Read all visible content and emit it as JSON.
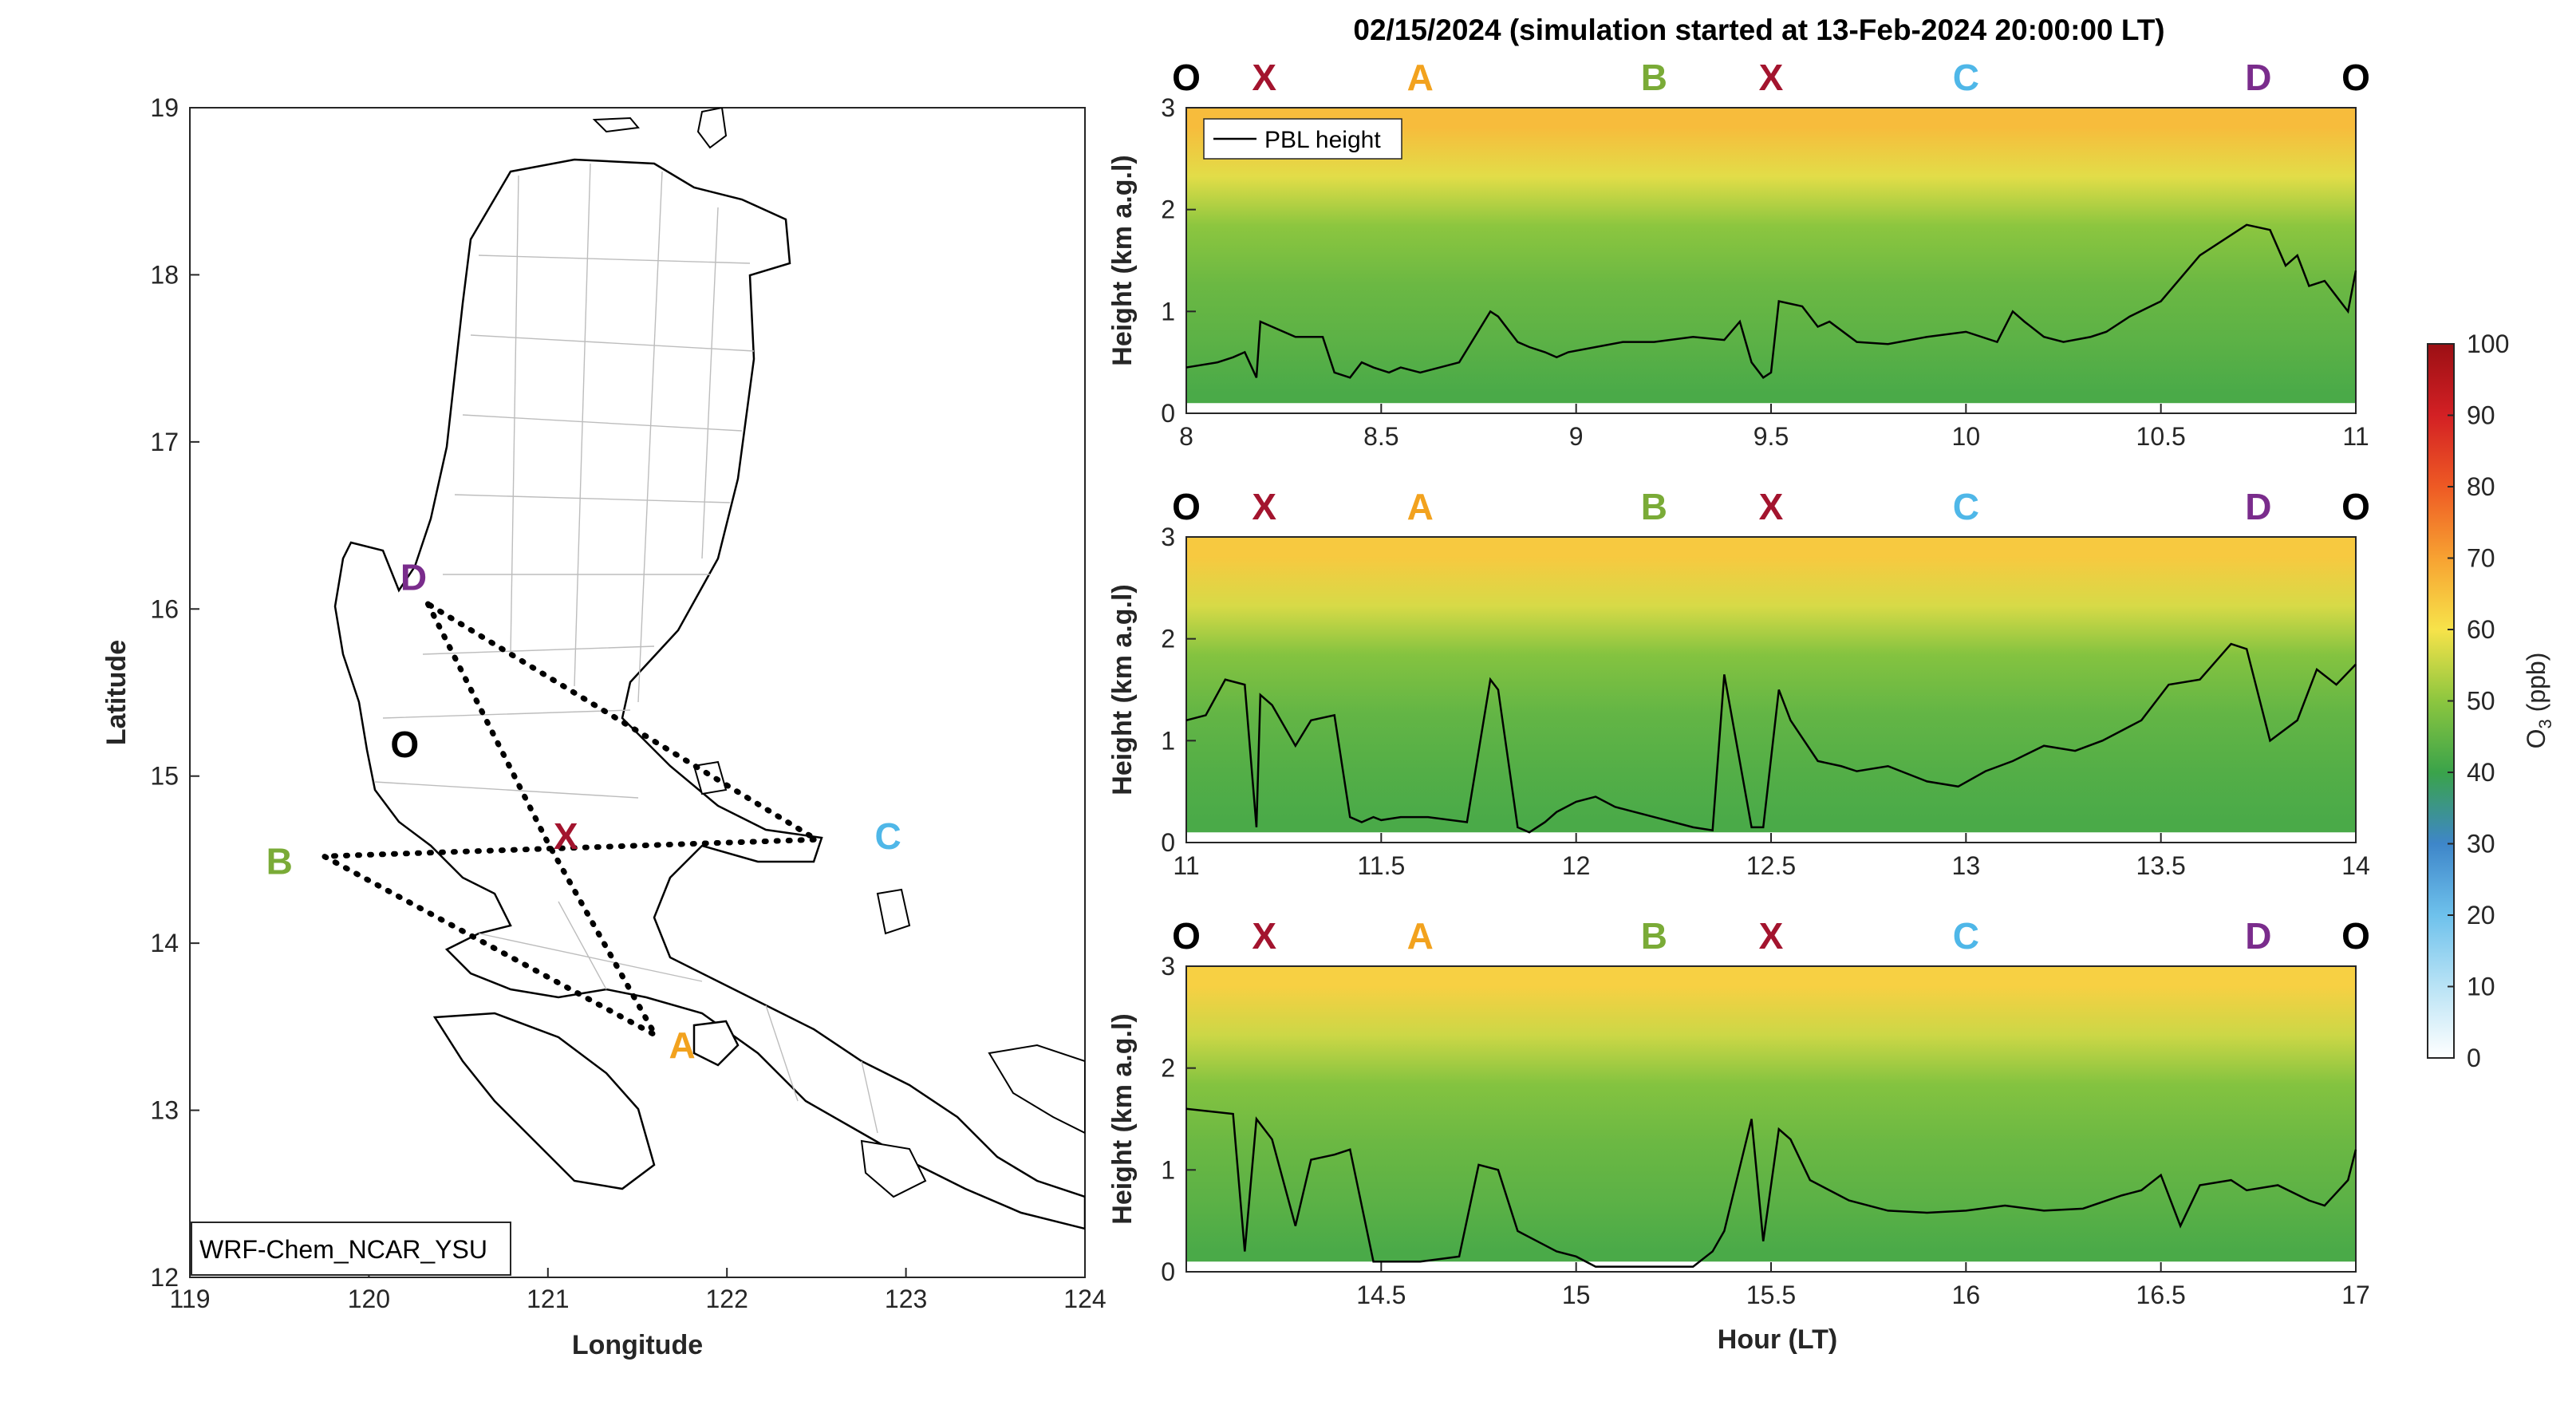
{
  "figure": {
    "title": "02/15/2024 (simulation started at 13-Feb-2024 20:00:00 LT)",
    "xlabel": "Hour (LT)"
  },
  "colors": {
    "O": "#000000",
    "X": "#a3142e",
    "A": "#f2a21e",
    "B": "#7aab37",
    "C": "#4fb7e8",
    "D": "#7a2c8c"
  },
  "chart_data": [
    {
      "type": "map",
      "xlabel": "Longitude",
      "ylabel": "Latitude",
      "xlim": [
        119,
        124
      ],
      "ylim": [
        12,
        19
      ],
      "xticks": [
        119,
        120,
        121,
        122,
        123,
        124
      ],
      "yticks": [
        12,
        13,
        14,
        15,
        16,
        17,
        18,
        19
      ],
      "model_label": "WRF-Chem_NCAR_YSU",
      "points": [
        {
          "name": "O",
          "lon": 120.2,
          "lat": 15.2
        },
        {
          "name": "X",
          "lon": 121.1,
          "lat": 14.65
        },
        {
          "name": "A",
          "lon": 121.75,
          "lat": 13.4
        },
        {
          "name": "B",
          "lon": 119.5,
          "lat": 14.5
        },
        {
          "name": "C",
          "lon": 122.9,
          "lat": 14.65
        },
        {
          "name": "D",
          "lon": 120.25,
          "lat": 16.2
        }
      ],
      "route": [
        {
          "lon": 120.33,
          "lat": 16.03
        },
        {
          "lon": 121.0,
          "lat": 14.6
        },
        {
          "lon": 121.6,
          "lat": 13.45
        },
        {
          "lon": 119.75,
          "lat": 14.52
        },
        {
          "lon": 122.5,
          "lat": 14.62
        },
        {
          "lon": 120.33,
          "lat": 16.03
        }
      ]
    },
    {
      "type": "heatmap",
      "ylabel": "Height (km a.g.l)",
      "xlim": [
        8,
        11
      ],
      "ylim": [
        0,
        3
      ],
      "xticks": [
        8,
        8.5,
        9,
        9.5,
        10,
        10.5,
        11
      ],
      "yticks": [
        0,
        1,
        2,
        3
      ],
      "legend": "PBL height",
      "point_labels": [
        {
          "name": "O",
          "x": 8.0
        },
        {
          "name": "X",
          "x": 8.2
        },
        {
          "name": "A",
          "x": 8.6
        },
        {
          "name": "B",
          "x": 9.2
        },
        {
          "name": "X",
          "x": 9.5
        },
        {
          "name": "C",
          "x": 10.0
        },
        {
          "name": "D",
          "x": 10.75
        },
        {
          "name": "O",
          "x": 11.0
        }
      ],
      "pbl": {
        "x": [
          8.0,
          8.08,
          8.12,
          8.15,
          8.18,
          8.19,
          8.22,
          8.28,
          8.35,
          8.38,
          8.42,
          8.45,
          8.48,
          8.52,
          8.55,
          8.6,
          8.65,
          8.7,
          8.78,
          8.8,
          8.85,
          8.88,
          8.92,
          8.95,
          8.98,
          9.05,
          9.12,
          9.2,
          9.3,
          9.38,
          9.42,
          9.45,
          9.48,
          9.5,
          9.52,
          9.58,
          9.62,
          9.65,
          9.72,
          9.8,
          9.9,
          10.0,
          10.08,
          10.12,
          10.15,
          10.2,
          10.25,
          10.32,
          10.36,
          10.42,
          10.5,
          10.6,
          10.68,
          10.72,
          10.78,
          10.82,
          10.85,
          10.88,
          10.92,
          10.98,
          11.0
        ],
        "y": [
          0.45,
          0.5,
          0.55,
          0.6,
          0.35,
          0.9,
          0.85,
          0.75,
          0.75,
          0.4,
          0.35,
          0.5,
          0.45,
          0.4,
          0.45,
          0.4,
          0.45,
          0.5,
          1.0,
          0.95,
          0.7,
          0.65,
          0.6,
          0.55,
          0.6,
          0.65,
          0.7,
          0.7,
          0.75,
          0.72,
          0.9,
          0.5,
          0.35,
          0.4,
          1.1,
          1.05,
          0.85,
          0.9,
          0.7,
          0.68,
          0.75,
          0.8,
          0.7,
          1.0,
          0.9,
          0.75,
          0.7,
          0.75,
          0.8,
          0.95,
          1.1,
          1.55,
          1.75,
          1.85,
          1.8,
          1.45,
          1.55,
          1.25,
          1.3,
          1.0,
          1.4
        ]
      },
      "o3_profile_ppb": {
        "heights": [
          0.1,
          0.6,
          1.2,
          1.8,
          2.3,
          2.8
        ],
        "values": [
          42,
          44,
          46,
          50,
          58,
          66
        ]
      }
    },
    {
      "type": "heatmap",
      "ylabel": "Height (km a.g.l)",
      "xlim": [
        11,
        14
      ],
      "ylim": [
        0,
        3
      ],
      "xticks": [
        11,
        11.5,
        12,
        12.5,
        13,
        13.5,
        14
      ],
      "yticks": [
        0,
        1,
        2,
        3
      ],
      "point_labels": [
        {
          "name": "O",
          "x": 11.0
        },
        {
          "name": "X",
          "x": 11.2
        },
        {
          "name": "A",
          "x": 11.6
        },
        {
          "name": "B",
          "x": 12.2
        },
        {
          "name": "X",
          "x": 12.5
        },
        {
          "name": "C",
          "x": 13.0
        },
        {
          "name": "D",
          "x": 13.75
        },
        {
          "name": "O",
          "x": 14.0
        }
      ],
      "pbl": {
        "x": [
          11.0,
          11.05,
          11.1,
          11.15,
          11.18,
          11.19,
          11.22,
          11.28,
          11.32,
          11.38,
          11.42,
          11.45,
          11.48,
          11.5,
          11.55,
          11.62,
          11.72,
          11.78,
          11.8,
          11.85,
          11.88,
          11.92,
          11.95,
          12.0,
          12.05,
          12.1,
          12.2,
          12.3,
          12.35,
          12.38,
          12.45,
          12.48,
          12.52,
          12.55,
          12.62,
          12.68,
          12.72,
          12.8,
          12.9,
          12.98,
          13.05,
          13.12,
          13.2,
          13.28,
          13.35,
          13.45,
          13.52,
          13.6,
          13.68,
          13.72,
          13.78,
          13.85,
          13.9,
          13.95,
          14.0
        ],
        "y": [
          1.2,
          1.25,
          1.6,
          1.55,
          0.15,
          1.45,
          1.35,
          0.95,
          1.2,
          1.25,
          0.25,
          0.2,
          0.25,
          0.22,
          0.25,
          0.25,
          0.2,
          1.6,
          1.5,
          0.15,
          0.1,
          0.2,
          0.3,
          0.4,
          0.45,
          0.35,
          0.25,
          0.15,
          0.12,
          1.65,
          0.15,
          0.15,
          1.5,
          1.2,
          0.8,
          0.75,
          0.7,
          0.75,
          0.6,
          0.55,
          0.7,
          0.8,
          0.95,
          0.9,
          1.0,
          1.2,
          1.55,
          1.6,
          1.95,
          1.9,
          1.0,
          1.2,
          1.7,
          1.55,
          1.75
        ]
      },
      "o3_profile_ppb": {
        "heights": [
          0.1,
          0.6,
          1.2,
          1.8,
          2.3,
          2.8
        ],
        "values": [
          42,
          43,
          45,
          49,
          57,
          64
        ]
      }
    },
    {
      "type": "heatmap",
      "ylabel": "Height (km a.g.l)",
      "xlim": [
        14,
        17
      ],
      "ylim": [
        0,
        3
      ],
      "xticks": [
        14.5,
        15,
        15.5,
        16,
        16.5,
        17
      ],
      "yticks": [
        0,
        1,
        2,
        3
      ],
      "point_labels": [
        {
          "name": "O",
          "x": 14.0
        },
        {
          "name": "X",
          "x": 14.2
        },
        {
          "name": "A",
          "x": 14.6
        },
        {
          "name": "B",
          "x": 15.2
        },
        {
          "name": "X",
          "x": 15.5
        },
        {
          "name": "C",
          "x": 16.0
        },
        {
          "name": "D",
          "x": 16.75
        },
        {
          "name": "O",
          "x": 17.0
        }
      ],
      "pbl": {
        "x": [
          14.0,
          14.12,
          14.15,
          14.18,
          14.22,
          14.28,
          14.32,
          14.38,
          14.42,
          14.48,
          14.55,
          14.6,
          14.7,
          14.75,
          14.8,
          14.85,
          14.9,
          14.95,
          15.0,
          15.05,
          15.1,
          15.2,
          15.3,
          15.35,
          15.38,
          15.45,
          15.48,
          15.52,
          15.55,
          15.6,
          15.7,
          15.8,
          15.9,
          16.0,
          16.1,
          16.2,
          16.3,
          16.4,
          16.45,
          16.5,
          16.55,
          16.6,
          16.68,
          16.72,
          16.8,
          16.88,
          16.92,
          16.98,
          17.0
        ],
        "y": [
          1.6,
          1.55,
          0.2,
          1.5,
          1.3,
          0.45,
          1.1,
          1.15,
          1.2,
          0.1,
          0.1,
          0.1,
          0.15,
          1.05,
          1.0,
          0.4,
          0.3,
          0.2,
          0.15,
          0.05,
          0.05,
          0.05,
          0.05,
          0.2,
          0.4,
          1.5,
          0.3,
          1.4,
          1.3,
          0.9,
          0.7,
          0.6,
          0.58,
          0.6,
          0.65,
          0.6,
          0.62,
          0.75,
          0.8,
          0.95,
          0.45,
          0.85,
          0.9,
          0.8,
          0.85,
          0.7,
          0.65,
          0.9,
          1.2
        ]
      },
      "o3_profile_ppb": {
        "heights": [
          0.1,
          0.6,
          1.2,
          1.8,
          2.3,
          2.8
        ],
        "values": [
          42,
          44,
          46,
          49,
          56,
          63
        ]
      }
    }
  ],
  "colorbar": {
    "label": "O",
    "label_sub": "3",
    "label_unit": " (ppb)",
    "ticks": [
      0,
      10,
      20,
      30,
      40,
      50,
      60,
      70,
      80,
      90,
      100
    ],
    "range": [
      0,
      100
    ]
  }
}
